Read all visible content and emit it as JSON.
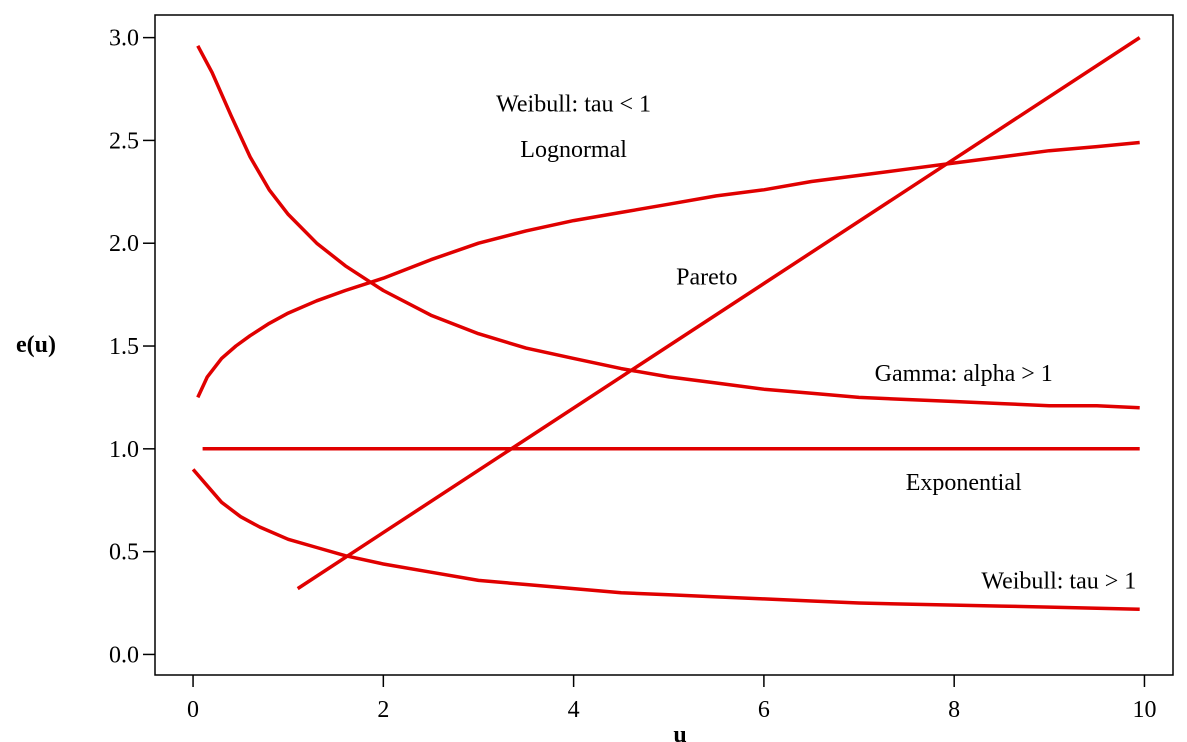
{
  "chart_data": {
    "type": "line",
    "title": "",
    "xlabel": "u",
    "ylabel": "e(u)",
    "xlim": [
      -0.4,
      10.3
    ],
    "ylim": [
      -0.1,
      3.11
    ],
    "xticks": [
      0,
      2,
      4,
      6,
      8,
      10
    ],
    "yticks": [
      0.0,
      0.5,
      1.0,
      1.5,
      2.0,
      2.5,
      3.0
    ],
    "xtick_labels": [
      "0",
      "2",
      "4",
      "6",
      "8",
      "10"
    ],
    "ytick_labels": [
      "0.0",
      "0.5",
      "1.0",
      "1.5",
      "2.0",
      "2.5",
      "3.0"
    ],
    "grid": false,
    "legend": "none",
    "line_color": "#e00000",
    "series": [
      {
        "x": [
          0.05,
          0.15,
          0.3,
          0.45,
          0.6,
          0.8,
          1.0,
          1.3,
          1.6,
          2.0,
          2.5,
          3.0,
          3.5,
          4.0,
          4.5,
          5.0,
          5.5,
          6.0,
          6.5,
          7.0,
          7.5,
          8.0,
          8.5,
          9.0,
          9.5,
          9.95
        ],
        "y": [
          1.25,
          1.35,
          1.44,
          1.5,
          1.55,
          1.61,
          1.66,
          1.72,
          1.77,
          1.83,
          1.92,
          2.0,
          2.06,
          2.11,
          2.15,
          2.19,
          2.23,
          2.26,
          2.3,
          2.33,
          2.36,
          2.39,
          2.42,
          2.45,
          2.47,
          2.49
        ]
      },
      {
        "x": [
          0.05,
          0.2,
          0.4,
          0.6,
          0.8,
          1.0,
          1.3,
          1.6,
          2.0,
          2.5,
          3.0,
          3.5,
          4.0,
          4.5,
          5.0,
          5.5,
          6.0,
          6.5,
          7.0,
          7.5,
          8.0,
          8.5,
          9.0,
          9.5,
          9.95
        ],
        "y": [
          2.96,
          2.83,
          2.62,
          2.42,
          2.26,
          2.14,
          2.0,
          1.89,
          1.77,
          1.65,
          1.56,
          1.49,
          1.44,
          1.39,
          1.35,
          1.32,
          1.29,
          1.27,
          1.25,
          1.24,
          1.23,
          1.22,
          1.21,
          1.21,
          1.2
        ]
      },
      {
        "x": [
          1.1,
          9.95
        ],
        "y": [
          0.32,
          3.0
        ]
      },
      {
        "x": [
          0.1,
          9.95
        ],
        "y": [
          1.0,
          1.0
        ]
      },
      {
        "x": [
          0.0,
          0.15,
          0.3,
          0.5,
          0.7,
          1.0,
          1.3,
          1.6,
          2.0,
          2.5,
          3.0,
          3.5,
          4.0,
          4.5,
          5.0,
          5.5,
          6.0,
          6.5,
          7.0,
          7.5,
          8.0,
          8.5,
          9.0,
          9.5,
          9.95
        ],
        "y": [
          0.9,
          0.82,
          0.74,
          0.67,
          0.62,
          0.56,
          0.52,
          0.48,
          0.44,
          0.4,
          0.36,
          0.34,
          0.32,
          0.3,
          0.29,
          0.28,
          0.27,
          0.26,
          0.25,
          0.245,
          0.24,
          0.235,
          0.23,
          0.225,
          0.22
        ]
      }
    ],
    "annotations": [
      {
        "text": "Weibull: tau < 1",
        "x": 4.0,
        "y": 2.64
      },
      {
        "text": "Lognormal",
        "x": 4.0,
        "y": 2.42
      },
      {
        "text": "Pareto",
        "x": 5.4,
        "y": 1.8
      },
      {
        "text": "Gamma: alpha > 1",
        "x": 8.1,
        "y": 1.33
      },
      {
        "text": "Exponential",
        "x": 8.1,
        "y": 0.8
      },
      {
        "text": "Weibull: tau > 1",
        "x": 9.1,
        "y": 0.32
      }
    ]
  }
}
